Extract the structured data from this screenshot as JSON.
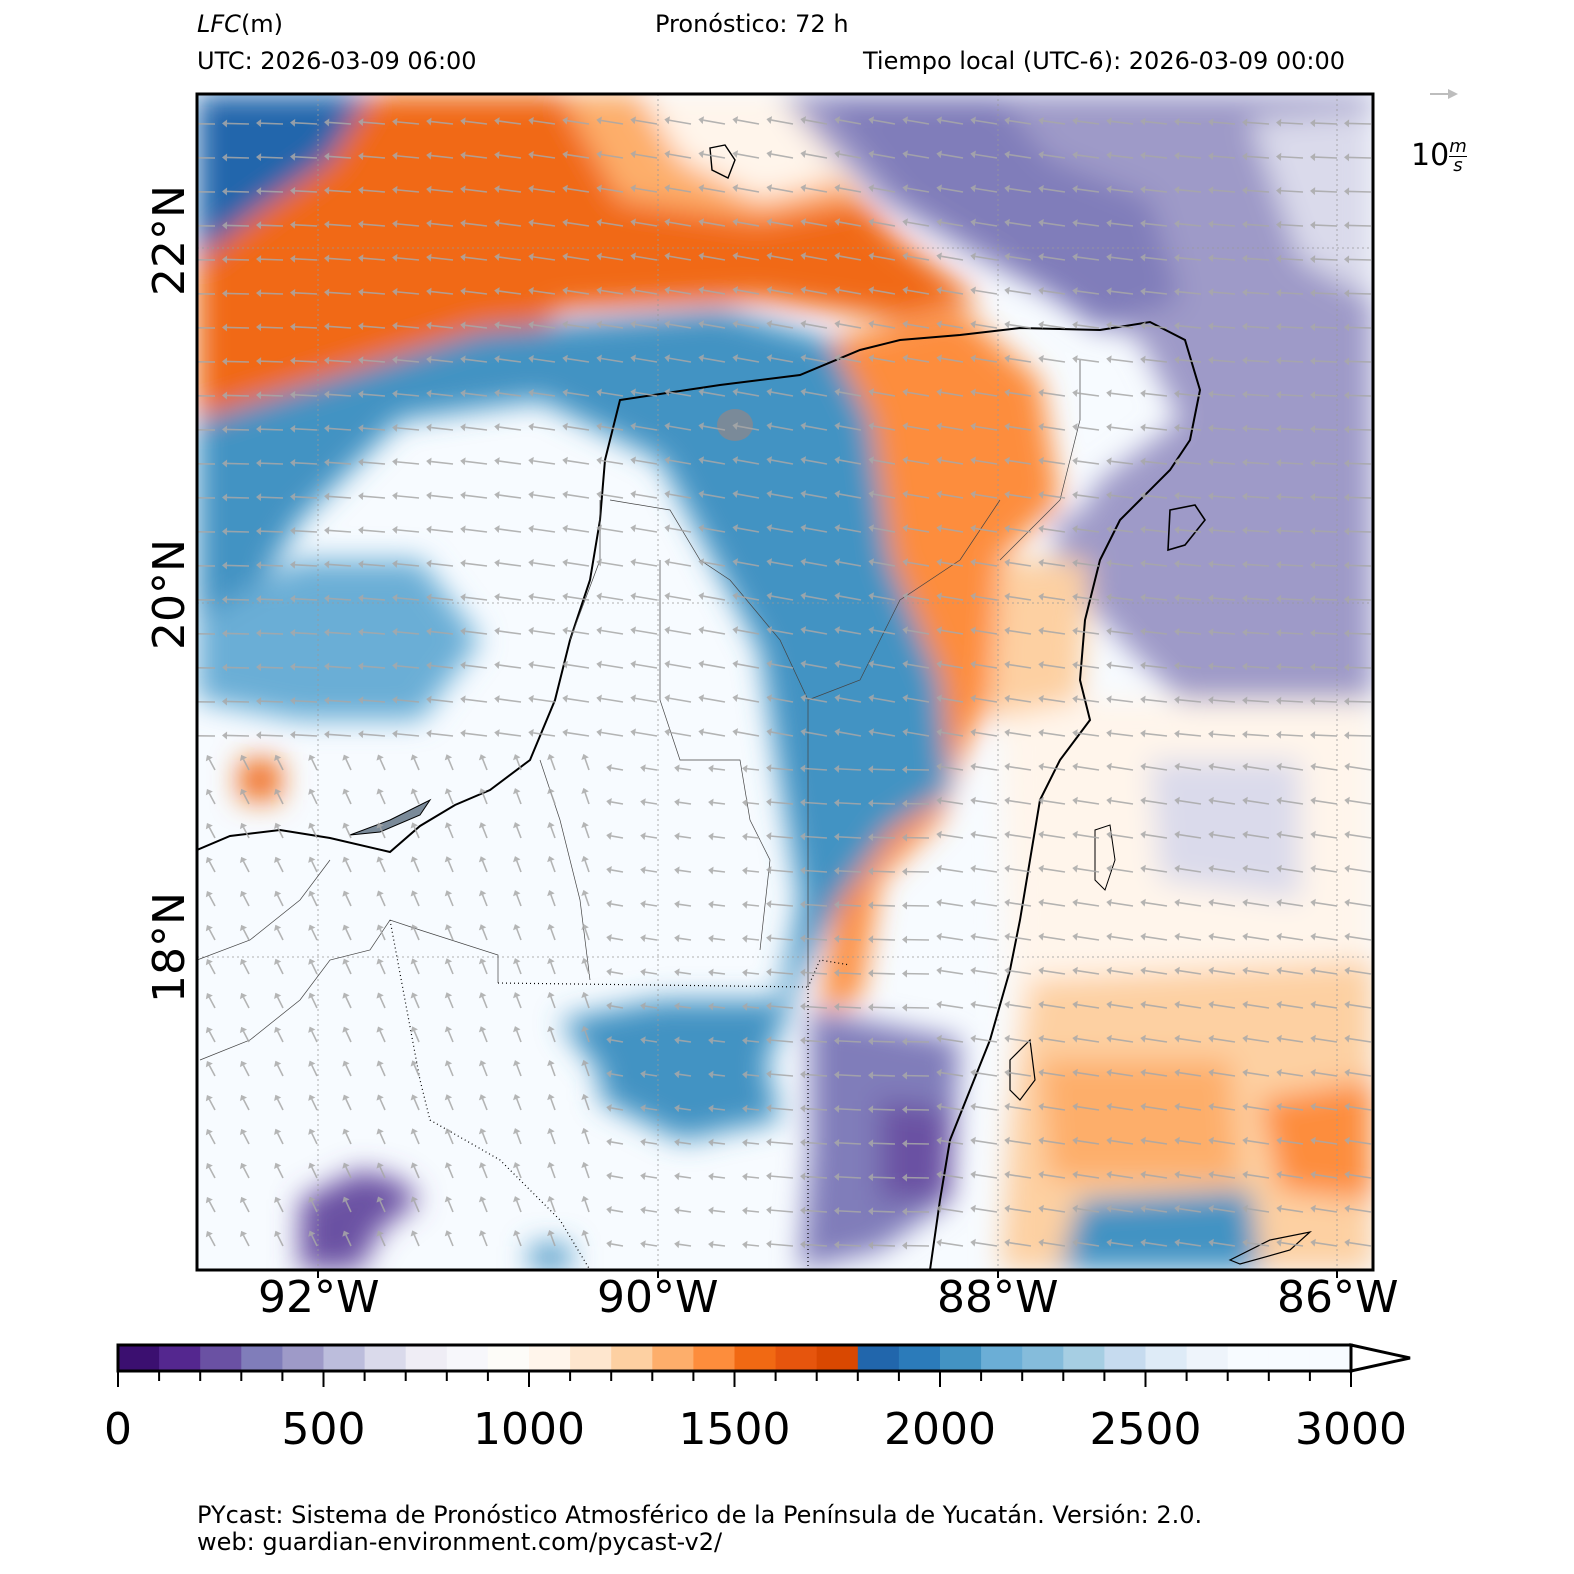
{
  "header": {
    "variable_label": "LFC",
    "variable_unit": "(m)",
    "forecast_label": "Pronóstico: 72 h",
    "utc_label": "UTC:  2026-03-09 06:00",
    "local_label": "Tiempo local (UTC-6): 2026-03-09 00:00"
  },
  "wind_key": {
    "value": "10",
    "unit_num": "m",
    "unit_den": "s"
  },
  "axes": {
    "lon_labels": [
      "92°W",
      "90°W",
      "88°W",
      "86°W"
    ],
    "lat_labels": [
      "22°N",
      "20°N",
      "18°N"
    ]
  },
  "colorbar": {
    "min": 0,
    "max": 3000,
    "step": 100,
    "tick_labels": [
      "0",
      "500",
      "1000",
      "1500",
      "2000",
      "2500",
      "3000"
    ],
    "colors": [
      "#3b0f70",
      "#54278f",
      "#6a51a3",
      "#807dba",
      "#9e9ac8",
      "#bcbddc",
      "#dadaeb",
      "#efedf5",
      "#f7f7fb",
      "#fdfcf8",
      "#fff5eb",
      "#fee6ce",
      "#fdd0a2",
      "#fdae6b",
      "#fd8d3c",
      "#f16913",
      "#e6550d",
      "#d94801",
      "#2166ac",
      "#2b7bba",
      "#4393c3",
      "#6baed6",
      "#85bcdb",
      "#a6cee3",
      "#c6dbef",
      "#deebf7",
      "#eef4fb",
      "#f7fbff"
    ]
  },
  "footer": {
    "line1": "PYcast: Sistema de Pronóstico Atmosférico de la Península de Yucatán. Versión: 2.0.",
    "line2": "web: guardian-environment.com/pycast-v2/"
  }
}
